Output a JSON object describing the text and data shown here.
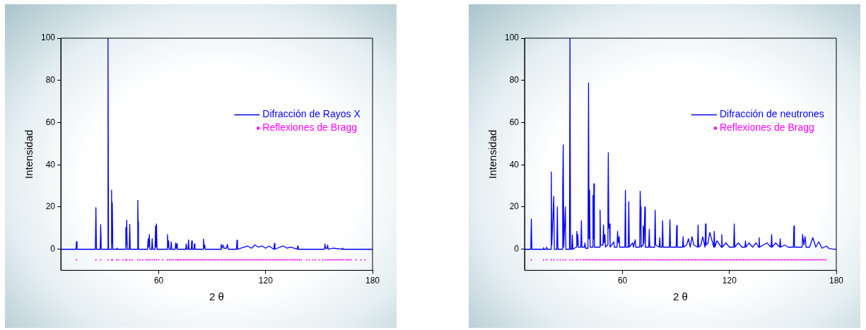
{
  "chart_data": [
    {
      "type": "line",
      "xlabel": "2 θ",
      "ylabel": "Intensidad",
      "xlim": [
        5,
        180
      ],
      "ylim": [
        -10,
        100
      ],
      "xticks": [
        60,
        120,
        180
      ],
      "yticks": [
        0,
        20,
        40,
        60,
        80,
        100
      ],
      "legend": "right",
      "series": [
        {
          "name": "Difracción de Rayos X",
          "color": "#0000ff",
          "type": "line",
          "x": [
            5,
            13.5,
            13.8,
            14.1,
            24.4,
            24.7,
            25,
            27.1,
            27.4,
            27.7,
            31.2,
            31.5,
            31.8,
            33.2,
            33.5,
            33.7,
            33.9,
            34.2,
            36.2,
            36.4,
            36.6,
            41.2,
            41.5,
            41.8,
            42,
            42.3,
            43.4,
            43.7,
            44,
            47.9,
            48.2,
            48.4,
            48.6,
            53.7,
            54,
            54.3,
            54.7,
            55,
            56,
            56.3,
            56.6,
            57.9,
            58.2,
            58.5,
            58.7,
            59,
            64.6,
            64.9,
            65.2,
            65.5,
            65.8,
            66.7,
            67,
            67.3,
            69.2,
            69.5,
            69.8,
            70.1,
            70.4,
            75.1,
            75.4,
            75.7,
            76.4,
            76.7,
            77,
            78.2,
            78.5,
            78.8,
            79.7,
            80,
            80.3,
            84.8,
            85.1,
            85.4,
            85.8,
            86.1,
            94.7,
            95,
            95.3,
            96,
            96.5,
            97,
            98,
            98.5,
            99,
            103.6,
            103.9,
            104.2,
            108,
            110,
            112,
            114,
            116,
            118,
            120,
            122,
            124.6,
            124.9,
            125.2,
            128,
            130,
            132,
            134,
            137.7,
            138,
            138.3,
            145,
            153,
            153.3,
            153.6,
            154.5,
            154.8,
            155.1,
            158,
            162.7,
            163,
            163.3,
            180
          ],
          "values": [
            0,
            0,
            3.6,
            0,
            0,
            19.7,
            0,
            0,
            11.7,
            0,
            0,
            100,
            0,
            0,
            28,
            3,
            22,
            0,
            0,
            0.5,
            0,
            0,
            10.2,
            2,
            13.8,
            0,
            0,
            11.8,
            0,
            0,
            23.2,
            13,
            0,
            0,
            5,
            1,
            7,
            0,
            0,
            5,
            0,
            0,
            11,
            1,
            12,
            0,
            0,
            7,
            1,
            4,
            0,
            0,
            3.5,
            0,
            0,
            3,
            0.5,
            2.5,
            0,
            0,
            2.5,
            0,
            0,
            4.5,
            0,
            0,
            4,
            0,
            0,
            2.5,
            0,
            0,
            4.8,
            0.5,
            2,
            0,
            0,
            2.3,
            0.5,
            2,
            0.5,
            0.5,
            0.5,
            2.3,
            0,
            0,
            4.3,
            0,
            1,
            1.5,
            0.5,
            2,
            1,
            1.5,
            0.5,
            1.5,
            0,
            2.8,
            0,
            1,
            1.5,
            0.5,
            1,
            0,
            1.5,
            0,
            0,
            0,
            2.5,
            0.5,
            0.5,
            2,
            0,
            0.5,
            0,
            0.5,
            0,
            0
          ]
        },
        {
          "name": "Reflexiones de Bragg",
          "color": "#ff00ff",
          "type": "scatter",
          "marker": "square",
          "x": [
            13.8,
            24.7,
            27.4,
            31.5,
            33.5,
            34,
            36.4,
            37.5,
            40,
            41.5,
            42,
            43.7,
            45,
            48.2,
            49.5,
            51,
            53,
            54,
            55,
            56.3,
            57.5,
            58.7,
            60,
            62,
            64.9,
            66,
            67,
            68,
            69.5,
            70.5,
            71,
            72,
            73,
            74,
            75,
            76,
            77,
            78,
            79,
            80,
            81,
            82,
            83,
            84,
            85,
            86,
            87,
            88,
            89,
            90,
            91,
            92,
            93,
            94,
            95,
            96,
            97,
            98,
            99,
            100,
            101,
            102,
            103,
            104,
            105,
            106,
            107,
            108,
            109,
            110,
            111,
            112,
            113,
            114,
            115,
            116,
            117,
            118,
            119,
            120,
            121,
            122,
            123,
            124,
            125,
            126,
            127,
            128,
            129,
            130,
            131,
            132,
            133,
            134,
            135,
            136,
            137,
            138,
            139,
            140,
            143,
            144.4,
            146.5,
            147.8,
            150,
            152,
            153.3,
            154.5,
            155.5,
            156.5,
            157.5,
            158.5,
            159.5,
            160.5,
            161.5,
            162.5,
            163.5,
            165,
            166,
            167,
            168,
            170.7,
            173.5,
            175.6
          ],
          "values": [
            -5,
            -5,
            -5,
            -5,
            -5,
            -5,
            -5,
            -5,
            -5,
            -5,
            -5,
            -5,
            -5,
            -5,
            -5,
            -5,
            -5,
            -5,
            -5,
            -5,
            -5,
            -5,
            -5,
            -5,
            -5,
            -5,
            -5,
            -5,
            -5,
            -5,
            -5,
            -5,
            -5,
            -5,
            -5,
            -5,
            -5,
            -5,
            -5,
            -5,
            -5,
            -5,
            -5,
            -5,
            -5,
            -5,
            -5,
            -5,
            -5,
            -5,
            -5,
            -5,
            -5,
            -5,
            -5,
            -5,
            -5,
            -5,
            -5,
            -5,
            -5,
            -5,
            -5,
            -5,
            -5,
            -5,
            -5,
            -5,
            -5,
            -5,
            -5,
            -5,
            -5,
            -5,
            -5,
            -5,
            -5,
            -5,
            -5,
            -5,
            -5,
            -5,
            -5,
            -5,
            -5,
            -5,
            -5,
            -5,
            -5,
            -5,
            -5,
            -5,
            -5,
            -5,
            -5,
            -5,
            -5,
            -5,
            -5,
            -5,
            -5,
            -5,
            -5,
            -5,
            -5,
            -5,
            -5,
            -5,
            -5,
            -5,
            -5,
            -5,
            -5,
            -5,
            -5,
            -5,
            -5,
            -5,
            -5,
            -5,
            -5,
            -5,
            -5,
            -5
          ]
        }
      ]
    },
    {
      "type": "line",
      "xlabel": "2 θ",
      "ylabel": "Intensidad",
      "xlim": [
        5,
        180
      ],
      "ylim": [
        -10,
        100
      ],
      "xticks": [
        60,
        120,
        180
      ],
      "yticks": [
        0,
        20,
        40,
        60,
        80,
        100
      ],
      "legend": "right",
      "series": [
        {
          "name": "Difracción de neutrones",
          "color": "#0000ff",
          "type": "line",
          "x": [
            5,
            8.5,
            8.8,
            9.1,
            15.4,
            15.7,
            16,
            17.1,
            17.4,
            17.7,
            19.7,
            20,
            20.3,
            21.4,
            21.7,
            23.1,
            23.4,
            23.7,
            26.1,
            26.4,
            26.7,
            27,
            27.9,
            28.2,
            30.2,
            30.5,
            30.8,
            31.5,
            31.8,
            32.1,
            34,
            34.3,
            34.6,
            34.9,
            35.2,
            36.6,
            36.9,
            37.2,
            38.6,
            38.9,
            39.2,
            40.6,
            40.9,
            41.2,
            41.5,
            41.8,
            43.1,
            43.4,
            43.7,
            43.9,
            44.2,
            47.1,
            47.4,
            47.7,
            49,
            49.3,
            49.6,
            50.1,
            50.4,
            51.5,
            51.8,
            52,
            52.3,
            52.7,
            53,
            55.1,
            55.4,
            56.9,
            57.2,
            57.6,
            58.1,
            58.4,
            61.3,
            61.6,
            61.9,
            63.2,
            63.5,
            63.8,
            65.7,
            66.1,
            67.1,
            67.4,
            69.6,
            69.9,
            70.1,
            70.4,
            71.3,
            71.6,
            72,
            72.5,
            72.8,
            74.7,
            75,
            75.3,
            78,
            78.3,
            78.6,
            80.6,
            80.9,
            81.2,
            82.2,
            82.5,
            82.8,
            86.3,
            86.6,
            86.9,
            90.1,
            90.4,
            90.7,
            93.7,
            94,
            94.3,
            96,
            97,
            98,
            99,
            100,
            102.1,
            102.4,
            102.7,
            104,
            105,
            106.3,
            106.6,
            106.9,
            108,
            109,
            111.2,
            111.5,
            111.8,
            113,
            115.4,
            115.7,
            116,
            118,
            120,
            122.4,
            122.7,
            123,
            125,
            127,
            128.7,
            129,
            129.3,
            131,
            133,
            135,
            136.4,
            136.7,
            137,
            139,
            141,
            143.4,
            143.7,
            144,
            146,
            148.2,
            148.5,
            148.8,
            151,
            153,
            155.9,
            156.2,
            156.5,
            158.5,
            160.8,
            161.1,
            161.8,
            162.5,
            163,
            165,
            166.8,
            168.5,
            170.2,
            172,
            174.4,
            176,
            178,
            180
          ],
          "values": [
            0,
            0,
            14.3,
            0,
            0,
            0.8,
            0,
            0,
            1,
            0,
            0,
            36.6,
            2,
            25,
            0,
            0,
            20,
            0,
            0,
            28,
            49.4,
            1,
            20,
            0,
            0,
            100,
            0,
            0,
            6.8,
            0,
            1,
            8.5,
            2,
            7,
            1,
            1,
            13.5,
            1,
            1,
            3,
            0.5,
            0.5,
            78.8,
            5,
            28,
            1,
            1,
            25.5,
            5,
            31,
            1,
            1,
            18.5,
            2,
            2,
            11.5,
            3,
            7,
            1,
            2,
            22,
            45.7,
            10,
            12,
            1,
            3.5,
            1,
            1,
            8.5,
            3,
            6,
            1,
            1,
            28,
            1,
            1,
            22.5,
            1,
            3,
            1,
            4.5,
            1,
            1,
            27.5,
            20,
            1,
            2,
            11,
            3,
            20,
            1,
            1,
            9.5,
            1,
            1,
            18.5,
            2,
            1,
            5.5,
            1,
            1,
            13.5,
            1,
            1,
            14,
            1,
            1,
            11.2,
            1,
            1,
            6,
            1,
            2,
            5,
            1,
            6,
            2,
            1,
            11.5,
            1,
            2,
            6,
            1,
            12,
            2,
            3,
            8,
            1,
            8.5,
            1,
            4,
            1,
            7,
            1,
            3,
            1,
            1,
            12,
            1,
            3,
            1,
            1,
            4,
            1,
            3,
            1,
            3,
            1,
            5.5,
            1,
            2,
            3,
            1,
            7,
            1,
            3,
            1,
            5,
            1,
            2,
            1,
            1,
            11,
            1,
            1,
            1,
            7,
            2,
            6,
            1,
            1,
            5.5,
            1,
            3.5,
            0.5,
            1.5,
            0.3,
            0.1,
            0
          ]
        },
        {
          "name": "Reflexiones de Bragg",
          "color": "#ff00ff",
          "type": "scatter",
          "marker": "square",
          "x": [
            8.8,
            15.7,
            17.4,
            20,
            21.4,
            23.4,
            25,
            26.6,
            28,
            30.5,
            32,
            34,
            35,
            36.5,
            38,
            39,
            40,
            41,
            42,
            43,
            44,
            45,
            46,
            47,
            48,
            49,
            50,
            51,
            52,
            53,
            54,
            55,
            56,
            57,
            58,
            59,
            60,
            61,
            62,
            63,
            64,
            65,
            66,
            67,
            68,
            69,
            70,
            71,
            72,
            73,
            74,
            75,
            76,
            77,
            78,
            79,
            80,
            81,
            82,
            83,
            84,
            85,
            86,
            87,
            88,
            89,
            90,
            91,
            92,
            93,
            94,
            95,
            96,
            97,
            98,
            99,
            100,
            101,
            102,
            103,
            104,
            105,
            106,
            107,
            108,
            109,
            110,
            111,
            112,
            113,
            114,
            115,
            116,
            117,
            118,
            119,
            120,
            121,
            122,
            123,
            124,
            125,
            126,
            127,
            128,
            129,
            130,
            131,
            132,
            133,
            134,
            135,
            136,
            137,
            138,
            139,
            140,
            141,
            142,
            143,
            144,
            145,
            146,
            147,
            148,
            149,
            150,
            151,
            152,
            153,
            154,
            155,
            156,
            157,
            158,
            159,
            160,
            161,
            162,
            163,
            164,
            165,
            166,
            167,
            168,
            169,
            170,
            171,
            172,
            173,
            174
          ],
          "values": [
            -5,
            -5,
            -5,
            -5,
            -5,
            -5,
            -5,
            -5,
            -5,
            -5,
            -5,
            -5,
            -5,
            -5,
            -5,
            -5,
            -5,
            -5,
            -5,
            -5,
            -5,
            -5,
            -5,
            -5,
            -5,
            -5,
            -5,
            -5,
            -5,
            -5,
            -5,
            -5,
            -5,
            -5,
            -5,
            -5,
            -5,
            -5,
            -5,
            -5,
            -5,
            -5,
            -5,
            -5,
            -5,
            -5,
            -5,
            -5,
            -5,
            -5,
            -5,
            -5,
            -5,
            -5,
            -5,
            -5,
            -5,
            -5,
            -5,
            -5,
            -5,
            -5,
            -5,
            -5,
            -5,
            -5,
            -5,
            -5,
            -5,
            -5,
            -5,
            -5,
            -5,
            -5,
            -5,
            -5,
            -5,
            -5,
            -5,
            -5,
            -5,
            -5,
            -5,
            -5,
            -5,
            -5,
            -5,
            -5,
            -5,
            -5,
            -5,
            -5,
            -5,
            -5,
            -5,
            -5,
            -5,
            -5,
            -5,
            -5,
            -5,
            -5,
            -5,
            -5,
            -5,
            -5,
            -5,
            -5,
            -5,
            -5,
            -5,
            -5,
            -5,
            -5,
            -5,
            -5,
            -5,
            -5,
            -5,
            -5,
            -5,
            -5,
            -5,
            -5,
            -5,
            -5,
            -5,
            -5,
            -5,
            -5,
            -5,
            -5,
            -5,
            -5,
            -5,
            -5,
            -5,
            -5,
            -5,
            -5,
            -5,
            -5,
            -5,
            -5,
            -5,
            -5,
            -5,
            -5,
            -5,
            -5,
            -5
          ]
        }
      ]
    }
  ]
}
